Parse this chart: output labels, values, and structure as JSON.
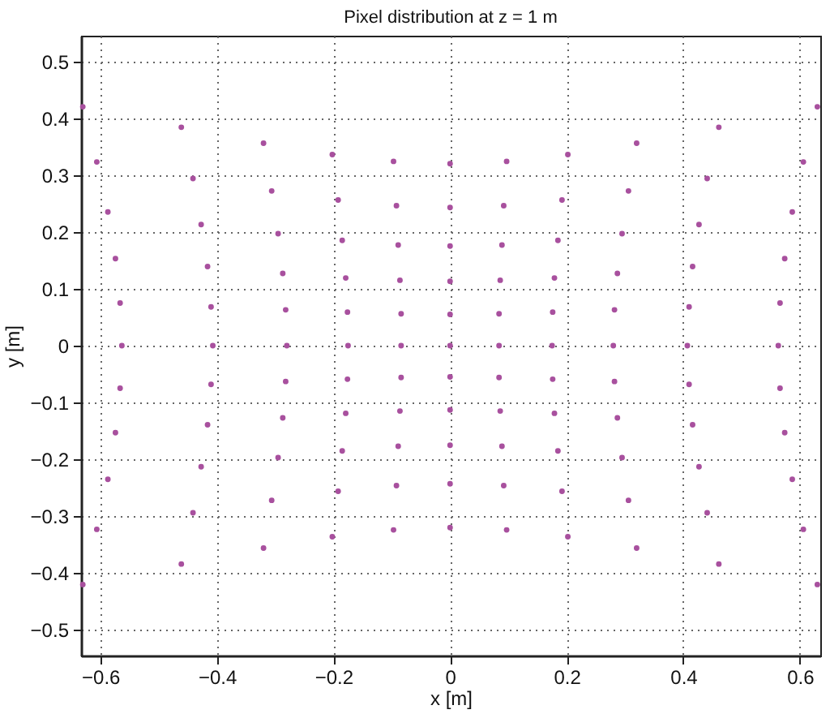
{
  "chart_data": {
    "type": "scatter",
    "title": "Pixel distribution at z = 1 m",
    "xlabel": "x [m]",
    "ylabel": "y [m]",
    "color": "#a8509e",
    "marker": "circle",
    "grid": true,
    "xlim": [
      -0.633,
      0.635
    ],
    "ylim": [
      -0.545,
      0.545
    ],
    "xticks": [
      -0.6,
      -0.4,
      -0.2,
      0,
      0.2,
      0.4,
      0.6
    ],
    "yticks": [
      -0.5,
      -0.4,
      -0.3,
      -0.2,
      -0.1,
      0,
      0.1,
      0.2,
      0.3,
      0.4,
      0.5
    ],
    "x": [
      -0.63,
      -0.461,
      -0.32,
      -0.202,
      -0.097,
      0,
      0.097,
      0.202,
      0.32,
      0.461,
      0.63,
      -0.606,
      -0.441,
      -0.306,
      -0.192,
      -0.092,
      0,
      0.092,
      0.192,
      0.306,
      0.441,
      0.606,
      -0.587,
      -0.427,
      -0.295,
      -0.185,
      -0.089,
      0,
      0.089,
      0.185,
      0.295,
      0.427,
      0.587,
      -0.574,
      -0.416,
      -0.287,
      -0.179,
      -0.086,
      0,
      0.086,
      0.179,
      0.287,
      0.416,
      0.574,
      -0.566,
      -0.41,
      -0.282,
      -0.176,
      -0.084,
      0,
      0.084,
      0.176,
      0.282,
      0.41,
      0.566,
      -0.563,
      -0.407,
      -0.28,
      -0.175,
      -0.084,
      0,
      0.084,
      0.175,
      0.28,
      0.407,
      0.563,
      -0.566,
      -0.41,
      -0.282,
      -0.176,
      -0.084,
      0,
      0.084,
      0.176,
      0.282,
      0.41,
      0.566,
      -0.574,
      -0.416,
      -0.287,
      -0.179,
      -0.086,
      0,
      0.086,
      0.179,
      0.287,
      0.416,
      0.574,
      -0.587,
      -0.427,
      -0.295,
      -0.185,
      -0.089,
      0,
      0.089,
      0.185,
      0.295,
      0.427,
      0.587,
      -0.606,
      -0.441,
      -0.306,
      -0.192,
      -0.092,
      0,
      0.092,
      0.192,
      0.306,
      0.441,
      0.606,
      -0.63,
      -0.461,
      -0.32,
      -0.202,
      -0.097,
      0,
      0.097,
      0.202,
      0.32,
      0.461,
      0.63
    ],
    "values": [
      0.42,
      0.384,
      0.356,
      0.336,
      0.324,
      0.32,
      0.324,
      0.336,
      0.356,
      0.384,
      0.42,
      0.323,
      0.294,
      0.272,
      0.256,
      0.246,
      0.243,
      0.246,
      0.256,
      0.272,
      0.294,
      0.323,
      0.235,
      0.213,
      0.197,
      0.185,
      0.177,
      0.175,
      0.177,
      0.185,
      0.197,
      0.213,
      0.235,
      0.153,
      0.139,
      0.127,
      0.119,
      0.115,
      0.113,
      0.115,
      0.119,
      0.127,
      0.139,
      0.153,
      0.075,
      0.068,
      0.063,
      0.059,
      0.056,
      0.055,
      0.056,
      0.059,
      0.063,
      0.068,
      0.075,
      0,
      0,
      0,
      0,
      0,
      0,
      0,
      0,
      0,
      0,
      0,
      -0.075,
      -0.068,
      -0.063,
      -0.059,
      -0.056,
      -0.055,
      -0.056,
      -0.059,
      -0.063,
      -0.068,
      -0.075,
      -0.153,
      -0.139,
      -0.127,
      -0.119,
      -0.115,
      -0.113,
      -0.115,
      -0.119,
      -0.127,
      -0.139,
      -0.153,
      -0.235,
      -0.213,
      -0.197,
      -0.185,
      -0.177,
      -0.175,
      -0.177,
      -0.185,
      -0.197,
      -0.213,
      -0.235,
      -0.323,
      -0.294,
      -0.272,
      -0.256,
      -0.246,
      -0.243,
      -0.246,
      -0.256,
      -0.272,
      -0.294,
      -0.323,
      -0.42,
      -0.384,
      -0.356,
      -0.336,
      -0.324,
      -0.32,
      -0.324,
      -0.336,
      -0.356,
      -0.384,
      -0.42
    ]
  }
}
